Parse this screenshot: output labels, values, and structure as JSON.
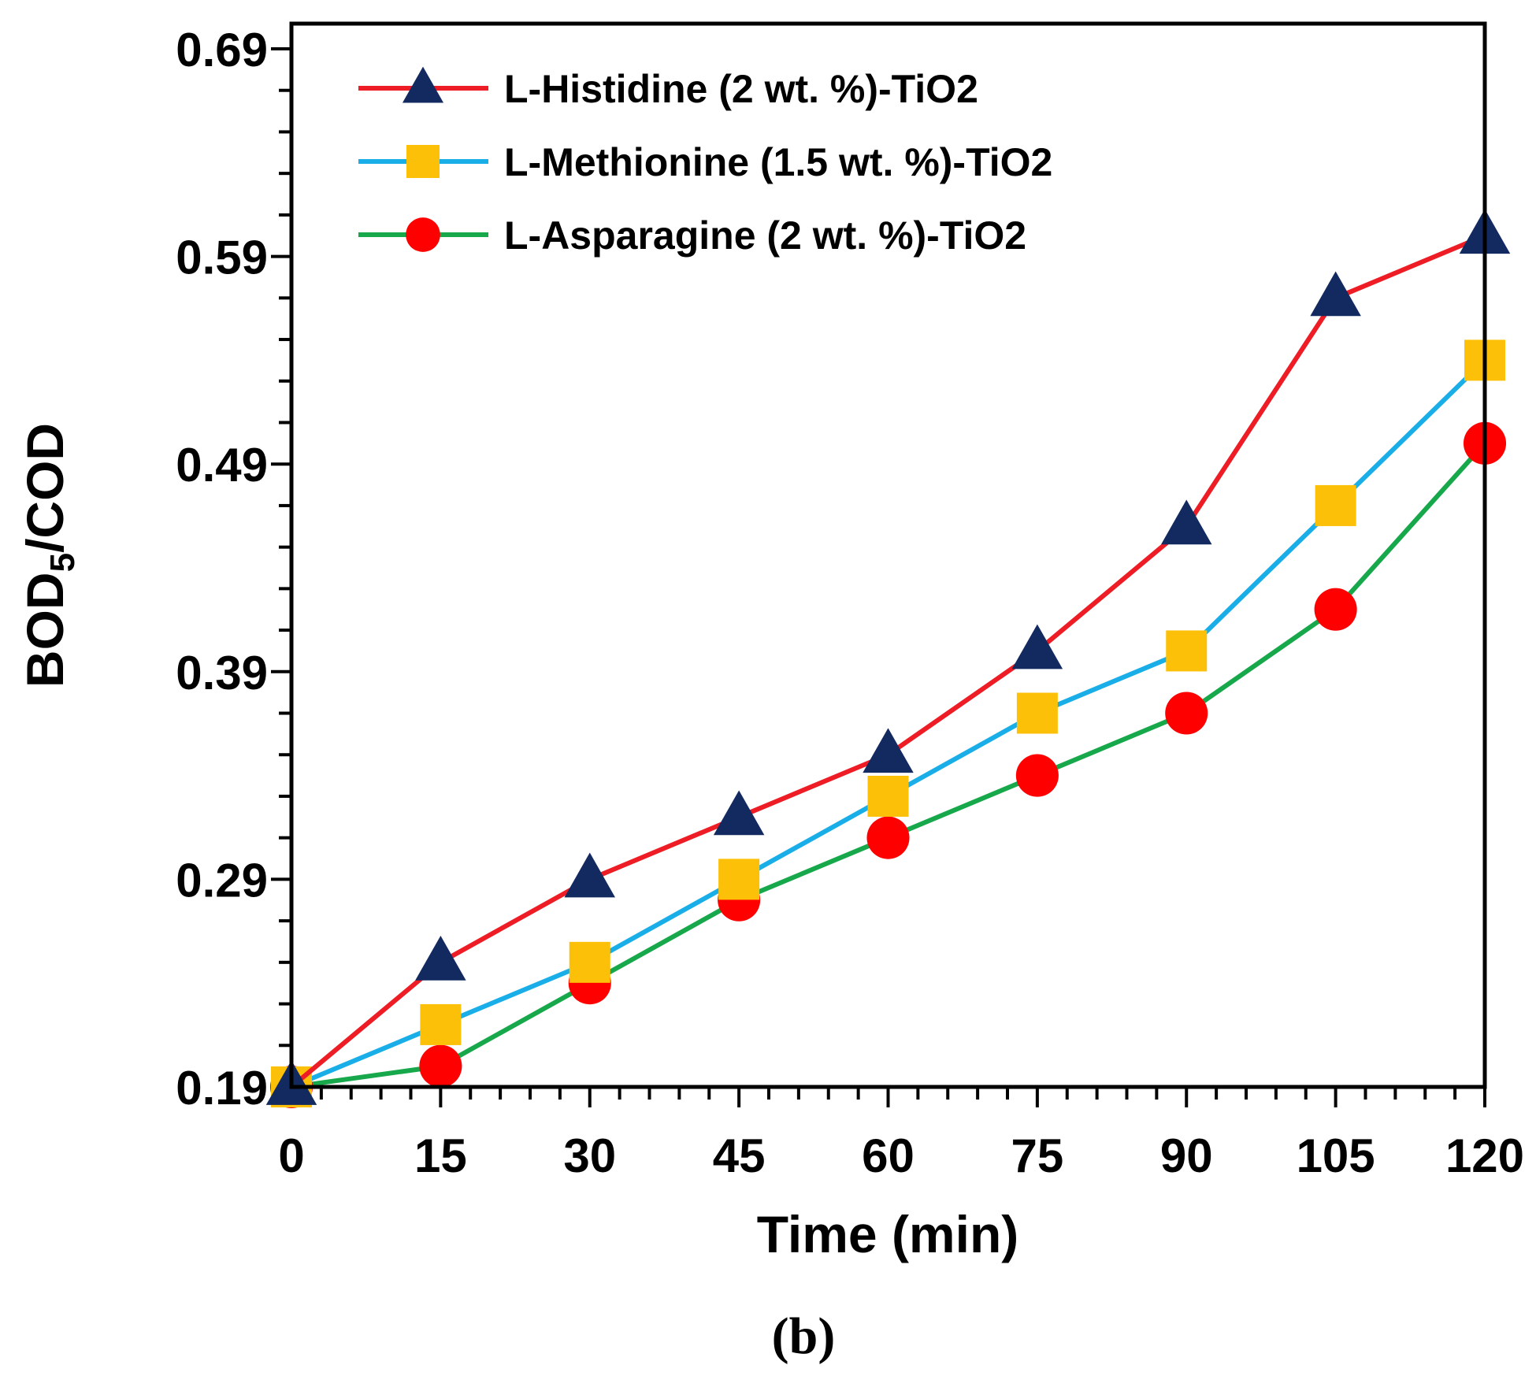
{
  "chart_data": {
    "type": "line",
    "title": "",
    "xlabel": "Time (min)",
    "ylabel_main": "BOD",
    "ylabel_sub": "5",
    "ylabel_rest": "/COD",
    "panel_label": "(b)",
    "x": [
      0,
      15,
      30,
      45,
      60,
      75,
      90,
      105,
      120
    ],
    "x_tick_labels": [
      "0",
      "15",
      "30",
      "45",
      "60",
      "75",
      "90",
      "105",
      "120"
    ],
    "xlim": [
      0,
      120
    ],
    "ylim": [
      0.19,
      0.69
    ],
    "y_tick_values": [
      0.19,
      0.29,
      0.39,
      0.49,
      0.59,
      0.69
    ],
    "y_tick_labels": [
      "0.19",
      "0.29",
      "0.39",
      "0.49",
      "0.59",
      "0.69"
    ],
    "grid": false,
    "legend_position": "top-left",
    "series": [
      {
        "name": "L-Histidine (2 wt. %)-TiO2",
        "line_color": "#ee1c25",
        "marker": "triangle",
        "marker_color": "#132a60",
        "values": [
          0.19,
          0.25,
          0.29,
          0.32,
          0.35,
          0.4,
          0.46,
          0.57,
          0.6
        ]
      },
      {
        "name": "L-Methionine (1.5 wt. %)-TiO2",
        "line_color": "#19aee7",
        "marker": "square",
        "marker_color": "#fdc008",
        "values": [
          0.19,
          0.22,
          0.25,
          0.29,
          0.33,
          0.37,
          0.4,
          0.47,
          0.54
        ]
      },
      {
        "name": "L-Asparagine (2 wt. %)-TiO2",
        "line_color": "#16a84a",
        "marker": "circle",
        "marker_color": "#fe0000",
        "values": [
          0.19,
          0.2,
          0.24,
          0.28,
          0.31,
          0.34,
          0.37,
          0.42,
          0.5
        ]
      }
    ]
  }
}
